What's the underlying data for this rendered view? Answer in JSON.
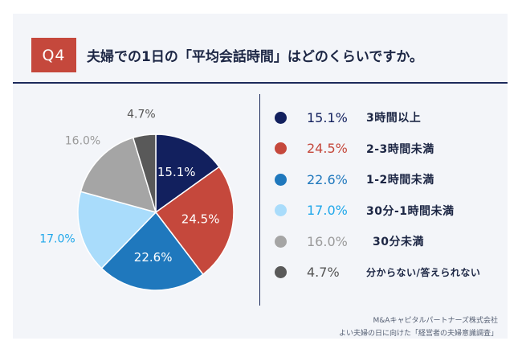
{
  "header": {
    "badge": "Q4",
    "question": "夫婦での1日の「平均会話時間」はどのくらいですか。"
  },
  "colors": {
    "accent": "#c5483c",
    "navy": "#1c2a5c"
  },
  "chart_data": {
    "type": "pie",
    "title": "夫婦での1日の「平均会話時間」はどのくらいですか。",
    "slices": [
      {
        "label": "3時間以上",
        "value": 15.1,
        "pct_text": "15.1%",
        "color": "#12205e",
        "text_color": "#12205e",
        "label_pos": "inside"
      },
      {
        "label": "2-3時間未満",
        "value": 24.5,
        "pct_text": "24.5%",
        "color": "#c5483c",
        "text_color": "#c5483c",
        "label_pos": "inside"
      },
      {
        "label": "1-2時間未満",
        "value": 22.6,
        "pct_text": "22.6%",
        "color": "#1f78bd",
        "text_color": "#1f78bd",
        "label_pos": "inside"
      },
      {
        "label": "30分-1時間未満",
        "value": 17.0,
        "pct_text": "17.0%",
        "color": "#a9dcfb",
        "text_color": "#1fa7ea",
        "label_pos": "outside"
      },
      {
        "label": "30分未満",
        "value": 16.0,
        "pct_text": "16.0%",
        "color": "#a5a5a5",
        "text_color": "#9a9a9a",
        "label_pos": "outside"
      },
      {
        "label": "分からない/答えられない",
        "value": 4.7,
        "pct_text": "4.7%",
        "color": "#595959",
        "text_color": "#555555",
        "label_pos": "outside"
      }
    ]
  },
  "footer": {
    "line1": "M&Aキャピタルパートナーズ株式会社",
    "line2": "よい夫婦の日に向けた「経営者の夫婦意識調査」"
  }
}
